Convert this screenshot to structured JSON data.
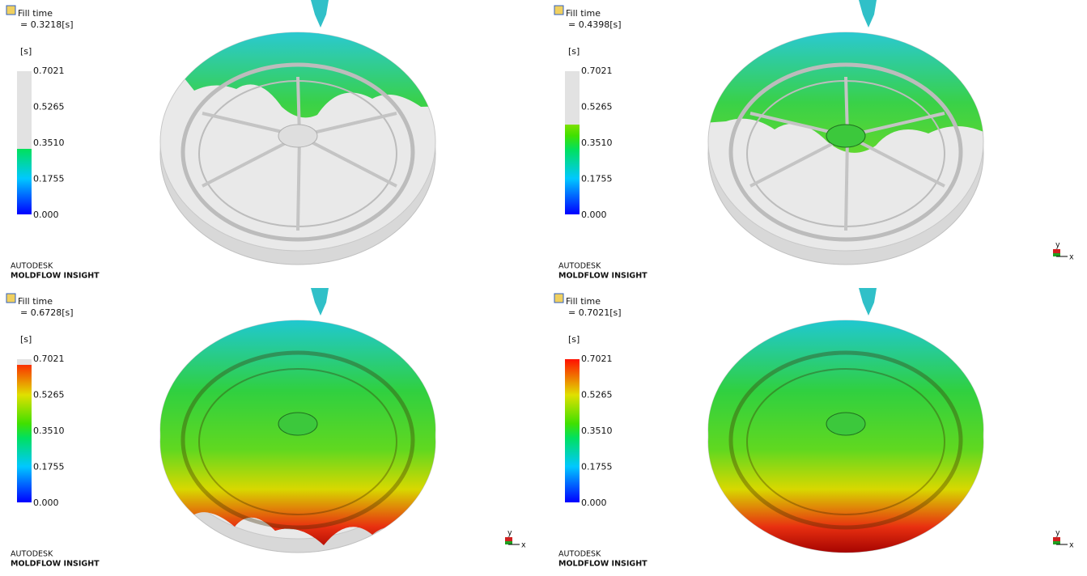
{
  "panels": [
    {
      "title": "Fill time",
      "time": "= 0.3218[s]",
      "unit": "[s]",
      "scale": [
        "0.7021",
        "0.5265",
        "0.3510",
        "0.1755",
        "0.000"
      ],
      "brand": "AUTODESK",
      "product": "MOLDFLOW INSIGHT"
    },
    {
      "title": "Fill time",
      "time": "= 0.4398[s]",
      "unit": "[s]",
      "scale": [
        "0.7021",
        "0.5265",
        "0.3510",
        "0.1755",
        "0.000"
      ],
      "brand": "AUTODESK",
      "product": "MOLDFLOW INSIGHT"
    },
    {
      "title": "Fill time",
      "time": "= 0.6728[s]",
      "unit": "[s]",
      "scale": [
        "0.7021",
        "0.5265",
        "0.3510",
        "0.1755",
        "0.000"
      ],
      "brand": "AUTODESK",
      "product": "MOLDFLOW INSIGHT"
    },
    {
      "title": "Fill time",
      "time": "= 0.7021[s]",
      "unit": "[s]",
      "scale": [
        "0.7021",
        "0.5265",
        "0.3510",
        "0.1755",
        "0.000"
      ],
      "brand": "AUTODESK",
      "product": "MOLDFLOW INSIGHT"
    }
  ],
  "triad": {
    "x": "x",
    "y": "y"
  }
}
